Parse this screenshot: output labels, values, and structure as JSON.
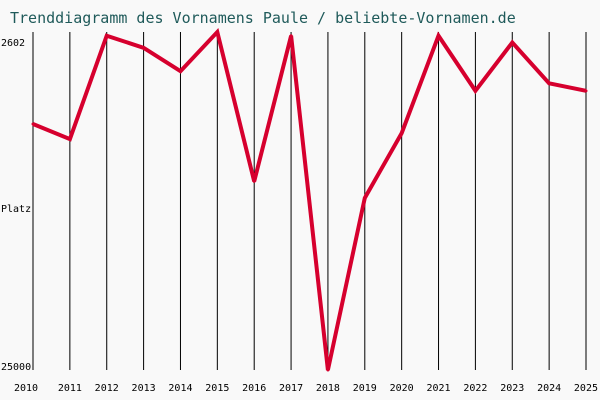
{
  "chart_data": {
    "type": "line",
    "title": "Trenddiagramm des Vornamens Paule / beliebte-Vornamen.de",
    "ylabel": "Platz",
    "y_tick_top": "2602",
    "y_tick_bottom": "25000",
    "x": [
      "2010",
      "2011",
      "2012",
      "2013",
      "2014",
      "2015",
      "2016",
      "2017",
      "2018",
      "2019",
      "2020",
      "2021",
      "2022",
      "2023",
      "2024",
      "2025"
    ],
    "series": [
      {
        "values": [
          8700,
          9700,
          2850,
          3650,
          5200,
          2602,
          12500,
          2850,
          25000,
          13600,
          9300,
          2850,
          6500,
          3300,
          6000,
          6500
        ]
      }
    ],
    "ylim": [
      2602,
      25000
    ],
    "y_inverted": true,
    "grid": "vertical",
    "colors": {
      "line": "#d6002e",
      "grid": "#000000",
      "title": "#1f5a5a",
      "background": "#f9f9f9"
    }
  }
}
